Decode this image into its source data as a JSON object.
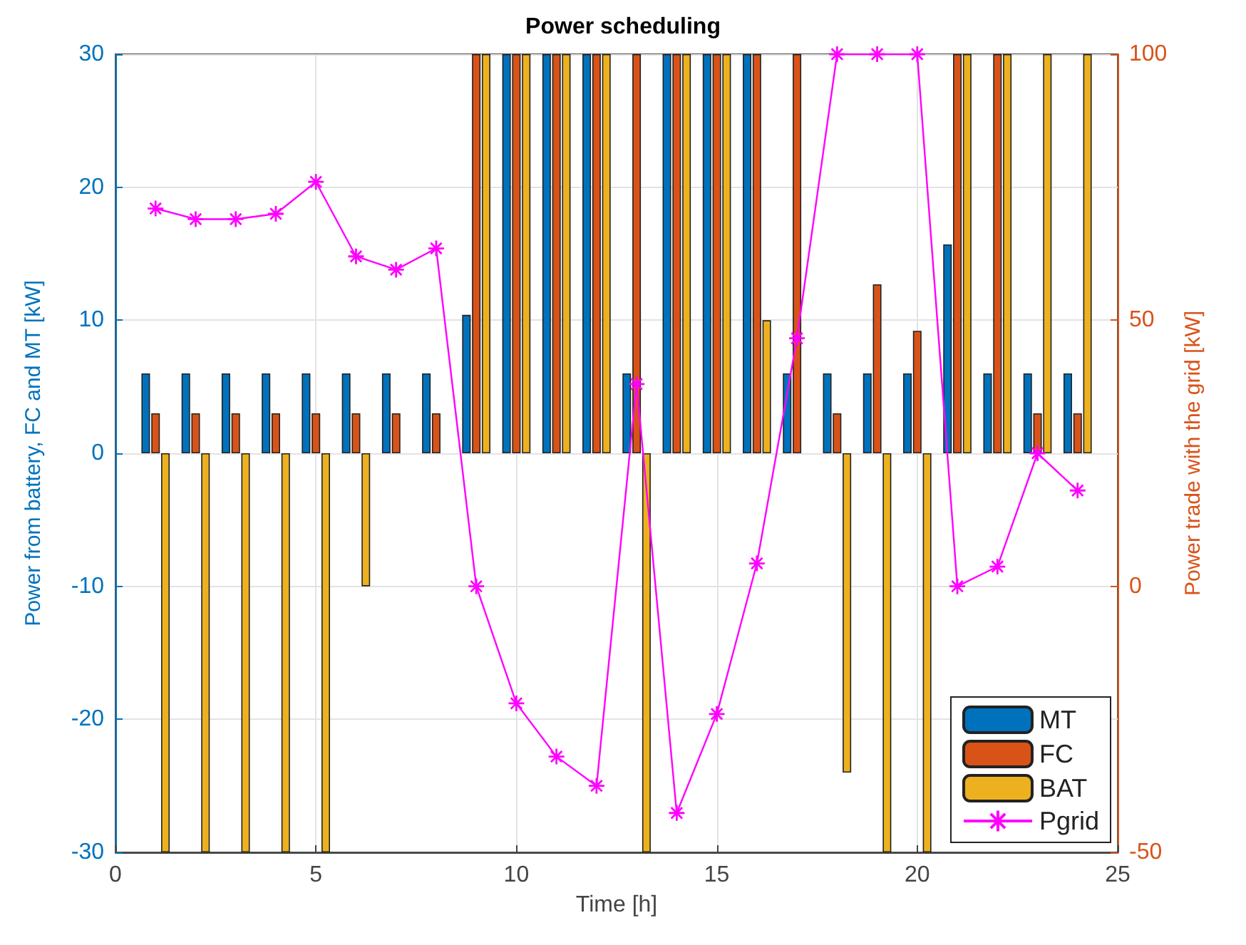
{
  "chart_data": {
    "type": "bar",
    "title": "Power scheduling",
    "xlabel": "Time [h]",
    "ylabel": "Power from battery, FC and MT [kW]",
    "y2label": "Power trade with the grid [kW]",
    "x": [
      1,
      2,
      3,
      4,
      5,
      6,
      7,
      8,
      9,
      10,
      11,
      12,
      13,
      14,
      15,
      16,
      17,
      18,
      19,
      20,
      21,
      22,
      23,
      24
    ],
    "series": [
      {
        "name": "MT",
        "color": "#0072bd",
        "values": [
          6,
          6,
          6,
          6,
          6,
          6,
          6,
          6,
          10.4,
          30,
          30,
          30,
          6,
          30,
          30,
          30,
          6,
          6,
          6,
          6,
          15.7,
          6,
          6,
          6
        ]
      },
      {
        "name": "FC",
        "color": "#d95319",
        "values": [
          3,
          3,
          3,
          3,
          3,
          3,
          3,
          3,
          30,
          30,
          30,
          30,
          30,
          30,
          30,
          30,
          30,
          3,
          12.7,
          9.2,
          30,
          30,
          3,
          3
        ]
      },
      {
        "name": "BAT",
        "color": "#edb120",
        "values": [
          -30,
          -30,
          -30,
          -30,
          -30,
          -10,
          0,
          0,
          30,
          30,
          30,
          30,
          -30,
          30,
          30,
          10,
          0,
          -24,
          -30,
          -30,
          30,
          30,
          30,
          30
        ]
      },
      {
        "name": "Pgrid",
        "type": "line",
        "axis": "y2",
        "marker": "cross",
        "color": "#ff00ff",
        "values": [
          71,
          69,
          69,
          70,
          76,
          62,
          59.5,
          63.5,
          0,
          -22,
          -32,
          -37.5,
          38,
          -42.6,
          -24,
          4.3,
          46.6,
          100,
          100,
          100,
          0,
          3.7,
          25,
          18
        ]
      }
    ],
    "xlim": [
      0,
      25
    ],
    "xticks": [
      0,
      5,
      10,
      15,
      20,
      25
    ],
    "ylim": [
      -30,
      30
    ],
    "yticks": [
      -30,
      -20,
      -10,
      0,
      10,
      20,
      30
    ],
    "y2lim": [
      -50,
      100
    ],
    "y2ticks": [
      -50,
      0,
      50,
      100
    ],
    "grid": true,
    "legend": "bottom right"
  }
}
